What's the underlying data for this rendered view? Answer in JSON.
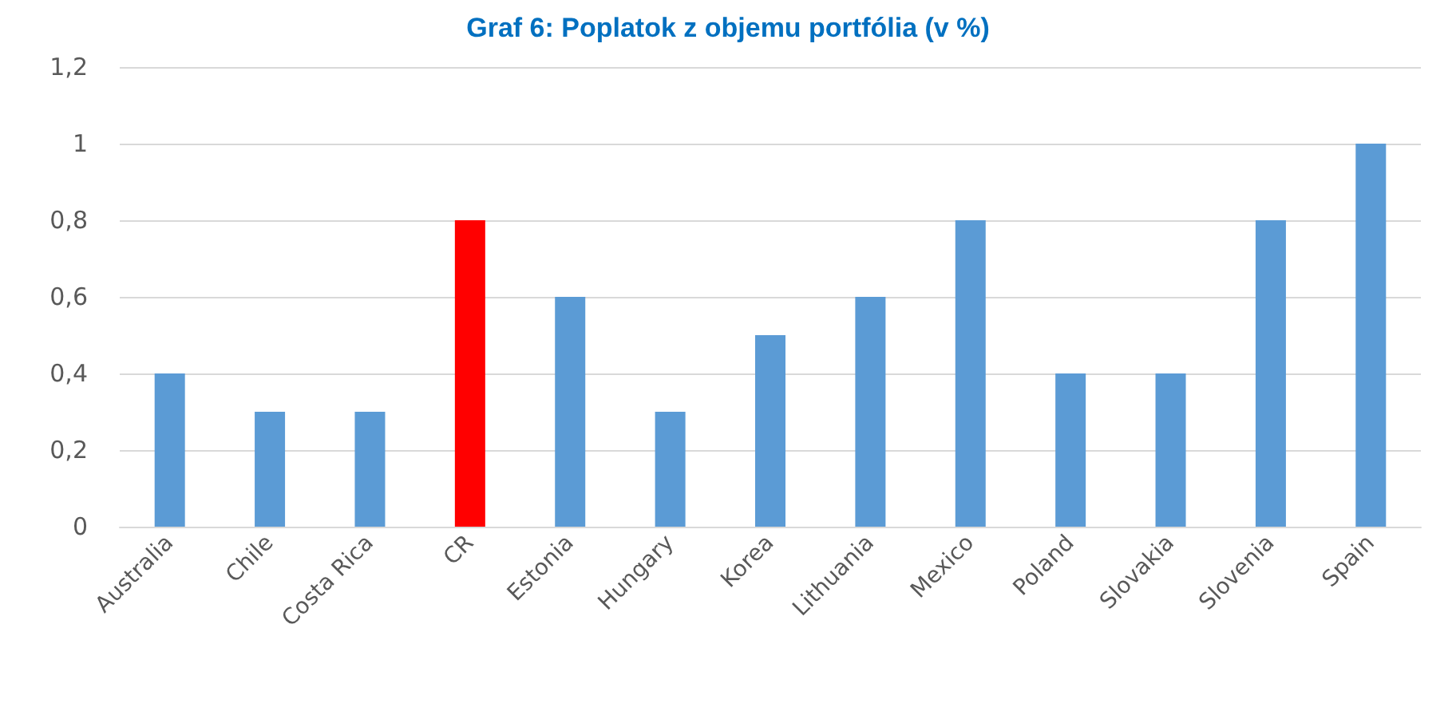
{
  "chart_data": {
    "type": "bar",
    "title": "Graf 6: Poplatok z objemu portfólia (v %)",
    "categories": [
      "Australia",
      "Chile",
      "Costa Rica",
      "CR",
      "Estonia",
      "Hungary",
      "Korea",
      "Lithuania",
      "Mexico",
      "Poland",
      "Slovakia",
      "Slovenia",
      "Spain"
    ],
    "values": [
      0.4,
      0.3,
      0.3,
      0.8,
      0.6,
      0.3,
      0.5,
      0.6,
      0.8,
      0.4,
      0.4,
      0.8,
      1
    ],
    "colors": [
      "#5b9bd5",
      "#5b9bd5",
      "#5b9bd5",
      "#ff0000",
      "#5b9bd5",
      "#5b9bd5",
      "#5b9bd5",
      "#5b9bd5",
      "#5b9bd5",
      "#5b9bd5",
      "#5b9bd5",
      "#5b9bd5",
      "#5b9bd5"
    ],
    "ylim": [
      0,
      1.2
    ],
    "yticks": [
      0,
      {
        "value": 0.2,
        "label": "0,2"
      },
      {
        "value": 0.4,
        "label": "0,4"
      },
      {
        "value": 0.6,
        "label": "0,6"
      },
      {
        "value": 0.8,
        "label": "0,8"
      },
      1,
      {
        "value": 1.2,
        "label": "1,2"
      }
    ],
    "grid": "y"
  }
}
